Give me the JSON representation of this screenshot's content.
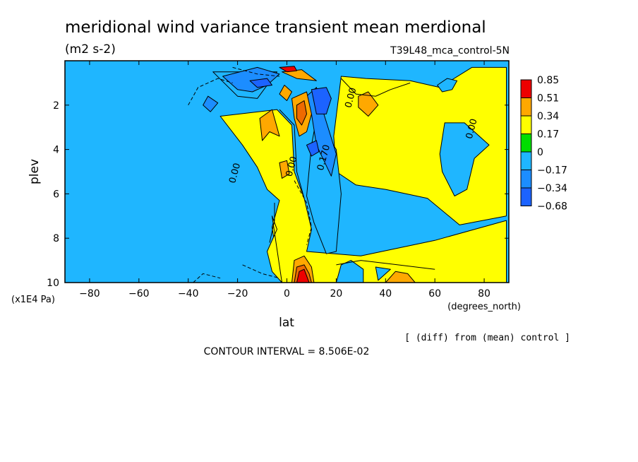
{
  "title": "meridional wind variance transient mean merdional",
  "units": "(m2 s-2)",
  "run_label": "T39L48_mca_control-5N",
  "diff_note": "[ (diff) from (mean) control ]",
  "contour_interval": "CONTOUR INTERVAL = 8.506E-02",
  "colors": {
    "neg_068": "#1c63ff",
    "neg_034": "#1c8dff",
    "neg_017": "#1fb6ff",
    "zero_band": "#00dd00",
    "pos_017": "#ffff00",
    "pos_034": "#ffa800",
    "pos_051": "#ee6a00",
    "pos_085": "#ee0000"
  },
  "chart_data": {
    "type": "heatmap",
    "title": "meridional wind variance transient mean merdional",
    "xlabel": "lat",
    "x_units": "(degrees_north)",
    "ylabel": "plev",
    "y_units": "(x1E4 Pa)",
    "xlim": [
      -90,
      90
    ],
    "ylim": [
      10,
      0
    ],
    "x_ticks": [
      -80,
      -60,
      -40,
      -20,
      0,
      20,
      40,
      60,
      80
    ],
    "y_ticks": [
      2,
      4,
      6,
      8,
      10
    ],
    "legend": {
      "placement": "right",
      "levels": [
        "0.85",
        "0.51",
        "0.34",
        "0.17",
        "0",
        "-0.17",
        "-0.34",
        "-0.68"
      ]
    },
    "contour_labels": [
      {
        "text": "0.00",
        "lat": -20,
        "plev": 5.1
      },
      {
        "text": "0.00",
        "lat": 3,
        "plev": 4.8
      },
      {
        "text": "0.170",
        "lat": 16,
        "plev": 4.4
      },
      {
        "text": "0.00",
        "lat": 27,
        "plev": 1.7
      },
      {
        "text": "0.00",
        "lat": 76,
        "plev": 3.1
      }
    ],
    "regions": [
      {
        "band": "pos_017",
        "points": [
          [
            -27,
            2.5
          ],
          [
            -4,
            2.2
          ],
          [
            2,
            2.9
          ],
          [
            3,
            5
          ],
          [
            7,
            6.2
          ],
          [
            10,
            7.6
          ],
          [
            8,
            8.6
          ],
          [
            30,
            8.8
          ],
          [
            60,
            8.1
          ],
          [
            89,
            7.2
          ],
          [
            89,
            10
          ],
          [
            -2,
            10
          ],
          [
            -4,
            9
          ],
          [
            -6,
            7.5
          ],
          [
            -3,
            6.3
          ],
          [
            -8,
            5.8
          ],
          [
            -12,
            4.8
          ],
          [
            -18,
            3.8
          ]
        ]
      },
      {
        "band": "pos_017",
        "points": [
          [
            -2,
            10
          ],
          [
            -6,
            9.5
          ],
          [
            -8,
            8.6
          ],
          [
            -4,
            7.6
          ],
          [
            -6,
            7
          ]
        ]
      },
      {
        "band": "pos_017",
        "points": [
          [
            19,
            3.4
          ],
          [
            22,
            0.7
          ],
          [
            32,
            0.8
          ],
          [
            50,
            0.9
          ],
          [
            62,
            1.2
          ],
          [
            75,
            0.3
          ],
          [
            89,
            0.3
          ],
          [
            89,
            7
          ],
          [
            70,
            7.4
          ],
          [
            57,
            6.2
          ],
          [
            40,
            5.8
          ],
          [
            28,
            5.6
          ],
          [
            20,
            5
          ]
        ]
      },
      {
        "band": "neg_017",
        "points": [
          [
            12,
            2.6
          ],
          [
            20,
            4
          ],
          [
            22,
            6
          ],
          [
            20,
            8.6
          ],
          [
            16,
            8.7
          ],
          [
            11,
            7.3
          ],
          [
            8,
            6.1
          ],
          [
            10,
            3.8
          ]
        ]
      },
      {
        "band": "neg_017",
        "points": [
          [
            62,
            4.2
          ],
          [
            64,
            2.8
          ],
          [
            72,
            2.8
          ],
          [
            78,
            3.4
          ],
          [
            82,
            3.8
          ],
          [
            76,
            4.4
          ],
          [
            73,
            5.8
          ],
          [
            68,
            6.1
          ],
          [
            63,
            5
          ]
        ]
      },
      {
        "band": "neg_017",
        "points": [
          [
            20,
            10
          ],
          [
            31,
            10
          ],
          [
            31,
            9.4
          ],
          [
            26,
            9
          ],
          [
            22,
            9.2
          ]
        ]
      },
      {
        "band": "neg_017",
        "points": [
          [
            36,
            9.3
          ],
          [
            42,
            9.4
          ],
          [
            37,
            9.9
          ]
        ]
      },
      {
        "band": "neg_017",
        "points": [
          [
            61,
            1.1
          ],
          [
            65,
            0.8
          ],
          [
            69,
            0.9
          ],
          [
            67,
            1.3
          ],
          [
            63,
            1.4
          ]
        ]
      },
      {
        "band": "neg_017",
        "points": [
          [
            -30,
            0.5
          ],
          [
            -20,
            1.6
          ],
          [
            -12,
            1.7
          ],
          [
            -4,
            0.5
          ]
        ]
      },
      {
        "band": "neg_034",
        "points": [
          [
            -26,
            0.7
          ],
          [
            -20,
            1.3
          ],
          [
            -14,
            1.4
          ],
          [
            -8,
            1.1
          ],
          [
            -3,
            0.6
          ],
          [
            -12,
            0.3
          ]
        ]
      },
      {
        "band": "neg_034",
        "points": [
          [
            6,
            1.8
          ],
          [
            12,
            1.2
          ],
          [
            15,
            2.4
          ],
          [
            20,
            4.2
          ],
          [
            18,
            5.2
          ],
          [
            12,
            3.8
          ],
          [
            10,
            2.4
          ]
        ]
      },
      {
        "band": "neg_034",
        "points": [
          [
            -34,
            2
          ],
          [
            -32,
            1.6
          ],
          [
            -28,
            1.9
          ],
          [
            -31,
            2.3
          ]
        ]
      },
      {
        "band": "neg_068",
        "points": [
          [
            10,
            1.3
          ],
          [
            16,
            1.2
          ],
          [
            18,
            1.7
          ],
          [
            16,
            2.4
          ],
          [
            12,
            2.4
          ]
        ]
      },
      {
        "band": "neg_068",
        "points": [
          [
            8,
            3.8
          ],
          [
            12,
            3.6
          ],
          [
            13,
            4.1
          ],
          [
            10,
            4.3
          ]
        ]
      },
      {
        "band": "neg_068",
        "points": [
          [
            -15,
            0.9
          ],
          [
            -8,
            0.8
          ],
          [
            -6,
            1.1
          ],
          [
            -12,
            1.2
          ]
        ]
      },
      {
        "band": "pos_034",
        "points": [
          [
            -2,
            0.5
          ],
          [
            6,
            0.4
          ],
          [
            12,
            0.9
          ],
          [
            4,
            0.8
          ]
        ]
      },
      {
        "band": "pos_085",
        "points": [
          [
            -3,
            0.3
          ],
          [
            3,
            0.25
          ],
          [
            4,
            0.45
          ],
          [
            0,
            0.5
          ]
        ]
      },
      {
        "band": "pos_034",
        "points": [
          [
            -11,
            2.6
          ],
          [
            -6,
            2.2
          ],
          [
            -3,
            3.4
          ],
          [
            -7,
            3.2
          ],
          [
            -10,
            3.6
          ]
        ]
      },
      {
        "band": "pos_034",
        "points": [
          [
            -3,
            1.5
          ],
          [
            -1,
            1.1
          ],
          [
            2,
            1.4
          ],
          [
            0,
            1.8
          ]
        ]
      },
      {
        "band": "pos_034",
        "points": [
          [
            2,
            1.7
          ],
          [
            8,
            1.4
          ],
          [
            10,
            2.4
          ],
          [
            8,
            3.2
          ],
          [
            5,
            3.4
          ],
          [
            3,
            2.6
          ]
        ]
      },
      {
        "band": "pos_051",
        "points": [
          [
            4,
            2
          ],
          [
            7,
            1.8
          ],
          [
            8,
            2.4
          ],
          [
            6,
            2.9
          ],
          [
            4,
            2.6
          ]
        ]
      },
      {
        "band": "pos_034",
        "points": [
          [
            29,
            1.6
          ],
          [
            33,
            1.4
          ],
          [
            37,
            2
          ],
          [
            33,
            2.5
          ],
          [
            29,
            2.1
          ]
        ]
      },
      {
        "band": "pos_034",
        "points": [
          [
            -3,
            4.6
          ],
          [
            0,
            4.5
          ],
          [
            1,
            5.1
          ],
          [
            -2,
            5.3
          ]
        ]
      },
      {
        "band": "pos_034",
        "points": [
          [
            2,
            10
          ],
          [
            3,
            9.0
          ],
          [
            7,
            8.8
          ],
          [
            10,
            9.3
          ],
          [
            11,
            10
          ]
        ]
      },
      {
        "band": "pos_051",
        "points": [
          [
            3,
            10
          ],
          [
            4,
            9.3
          ],
          [
            7,
            9.2
          ],
          [
            9,
            9.6
          ],
          [
            10,
            10
          ]
        ]
      },
      {
        "band": "pos_085",
        "points": [
          [
            4,
            10
          ],
          [
            5,
            9.5
          ],
          [
            7,
            9.4
          ],
          [
            8,
            9.7
          ],
          [
            9,
            10
          ]
        ]
      },
      {
        "band": "pos_034",
        "points": [
          [
            40,
            10
          ],
          [
            44,
            9.5
          ],
          [
            49,
            9.6
          ],
          [
            52,
            10
          ]
        ]
      }
    ],
    "dashed_contours": [
      [
        [
          -40,
          2
        ],
        [
          -36,
          1.2
        ],
        [
          -28,
          0.8
        ],
        [
          -22,
          1.0
        ]
      ],
      [
        [
          -22,
          0.3
        ],
        [
          -12,
          0.6
        ],
        [
          -3,
          0.7
        ]
      ],
      [
        [
          3,
          5.4
        ],
        [
          8,
          6.4
        ],
        [
          10,
          7.5
        ],
        [
          8,
          8.3
        ]
      ],
      [
        [
          -18,
          9.2
        ],
        [
          -10,
          9.6
        ],
        [
          -3,
          9.8
        ]
      ],
      [
        [
          -38,
          10
        ],
        [
          -34,
          9.6
        ],
        [
          -27,
          9.8
        ]
      ]
    ],
    "solid_contours": [
      [
        [
          -3,
          2.2
        ],
        [
          3,
          2.9
        ],
        [
          4,
          5
        ],
        [
          7,
          6.2
        ]
      ],
      [
        [
          22,
          0.8
        ],
        [
          28,
          1.5
        ],
        [
          36,
          1.6
        ],
        [
          42,
          1.3
        ],
        [
          50,
          1.0
        ]
      ],
      [
        [
          20,
          9.2
        ],
        [
          30,
          9.0
        ],
        [
          45,
          9.2
        ],
        [
          60,
          9.4
        ]
      ],
      [
        [
          -7,
          8.2
        ],
        [
          -5,
          7.2
        ],
        [
          -5,
          6.4
        ]
      ]
    ]
  }
}
